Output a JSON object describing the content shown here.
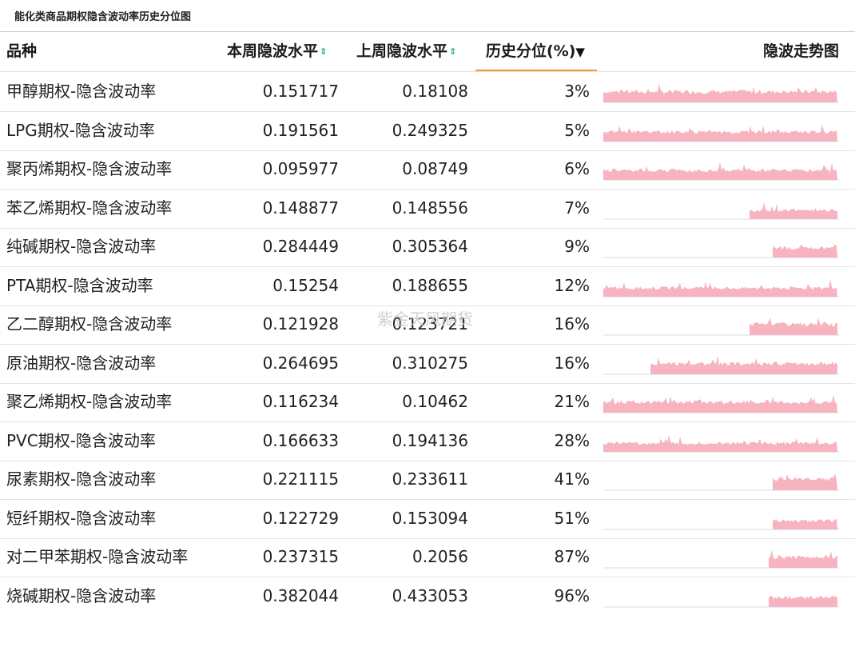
{
  "title": "能化类商品期权隐含波动率历史分位图",
  "columns": {
    "name": "品种",
    "current": "本周隐波水平",
    "previous": "上周隐波水平",
    "percentile": "历史分位(%)",
    "trend": "隐波走势图"
  },
  "sort_icons": {
    "both": "⇕",
    "active": "▼"
  },
  "watermark": "紫金天风期货",
  "colors": {
    "accent_underline": "#f39a2b",
    "sparkline_fill": "#f7b3bf",
    "sort_icon": "#2aa8a0"
  },
  "rows": [
    {
      "name": "甲醇期权-隐含波动率",
      "current": "0.151717",
      "previous": "0.18108",
      "percentile": "3%",
      "trend_start": 0.0,
      "trend_level": 0.55
    },
    {
      "name": "LPG期权-隐含波动率",
      "current": "0.191561",
      "previous": "0.249325",
      "percentile": "5%",
      "trend_start": 0.0,
      "trend_level": 0.5
    },
    {
      "name": "聚丙烯期权-隐含波动率",
      "current": "0.095977",
      "previous": "0.08749",
      "percentile": "6%",
      "trend_start": 0.0,
      "trend_level": 0.5
    },
    {
      "name": "苯乙烯期权-隐含波动率",
      "current": "0.148877",
      "previous": "0.148556",
      "percentile": "7%",
      "trend_start": 0.62,
      "trend_level": 0.45
    },
    {
      "name": "纯碱期权-隐含波动率",
      "current": "0.284449",
      "previous": "0.305364",
      "percentile": "9%",
      "trend_start": 0.72,
      "trend_level": 0.5
    },
    {
      "name": "PTA期权-隐含波动率",
      "current": "0.15254",
      "previous": "0.188655",
      "percentile": "12%",
      "trend_start": 0.0,
      "trend_level": 0.45
    },
    {
      "name": "乙二醇期权-隐含波动率",
      "current": "0.121928",
      "previous": "0.123721",
      "percentile": "16%",
      "trend_start": 0.62,
      "trend_level": 0.55
    },
    {
      "name": "原油期权-隐含波动率",
      "current": "0.264695",
      "previous": "0.310275",
      "percentile": "16%",
      "trend_start": 0.2,
      "trend_level": 0.55
    },
    {
      "name": "聚乙烯期权-隐含波动率",
      "current": "0.116234",
      "previous": "0.10462",
      "percentile": "21%",
      "trend_start": 0.0,
      "trend_level": 0.55
    },
    {
      "name": "PVC期权-隐含波动率",
      "current": "0.166633",
      "previous": "0.194136",
      "percentile": "28%",
      "trend_start": 0.0,
      "trend_level": 0.45
    },
    {
      "name": "尿素期权-隐含波动率",
      "current": "0.221115",
      "previous": "0.233611",
      "percentile": "41%",
      "trend_start": 0.72,
      "trend_level": 0.6
    },
    {
      "name": "短纤期权-隐含波动率",
      "current": "0.122729",
      "previous": "0.153094",
      "percentile": "51%",
      "trend_start": 0.72,
      "trend_level": 0.45
    },
    {
      "name": "对二甲苯期权-隐含波动率",
      "current": "0.237315",
      "previous": "0.2056",
      "percentile": "87%",
      "trend_start": 0.7,
      "trend_level": 0.55
    },
    {
      "name": "烧碱期权-隐含波动率",
      "current": "0.382044",
      "previous": "0.433053",
      "percentile": "96%",
      "trend_start": 0.7,
      "trend_level": 0.5
    }
  ]
}
